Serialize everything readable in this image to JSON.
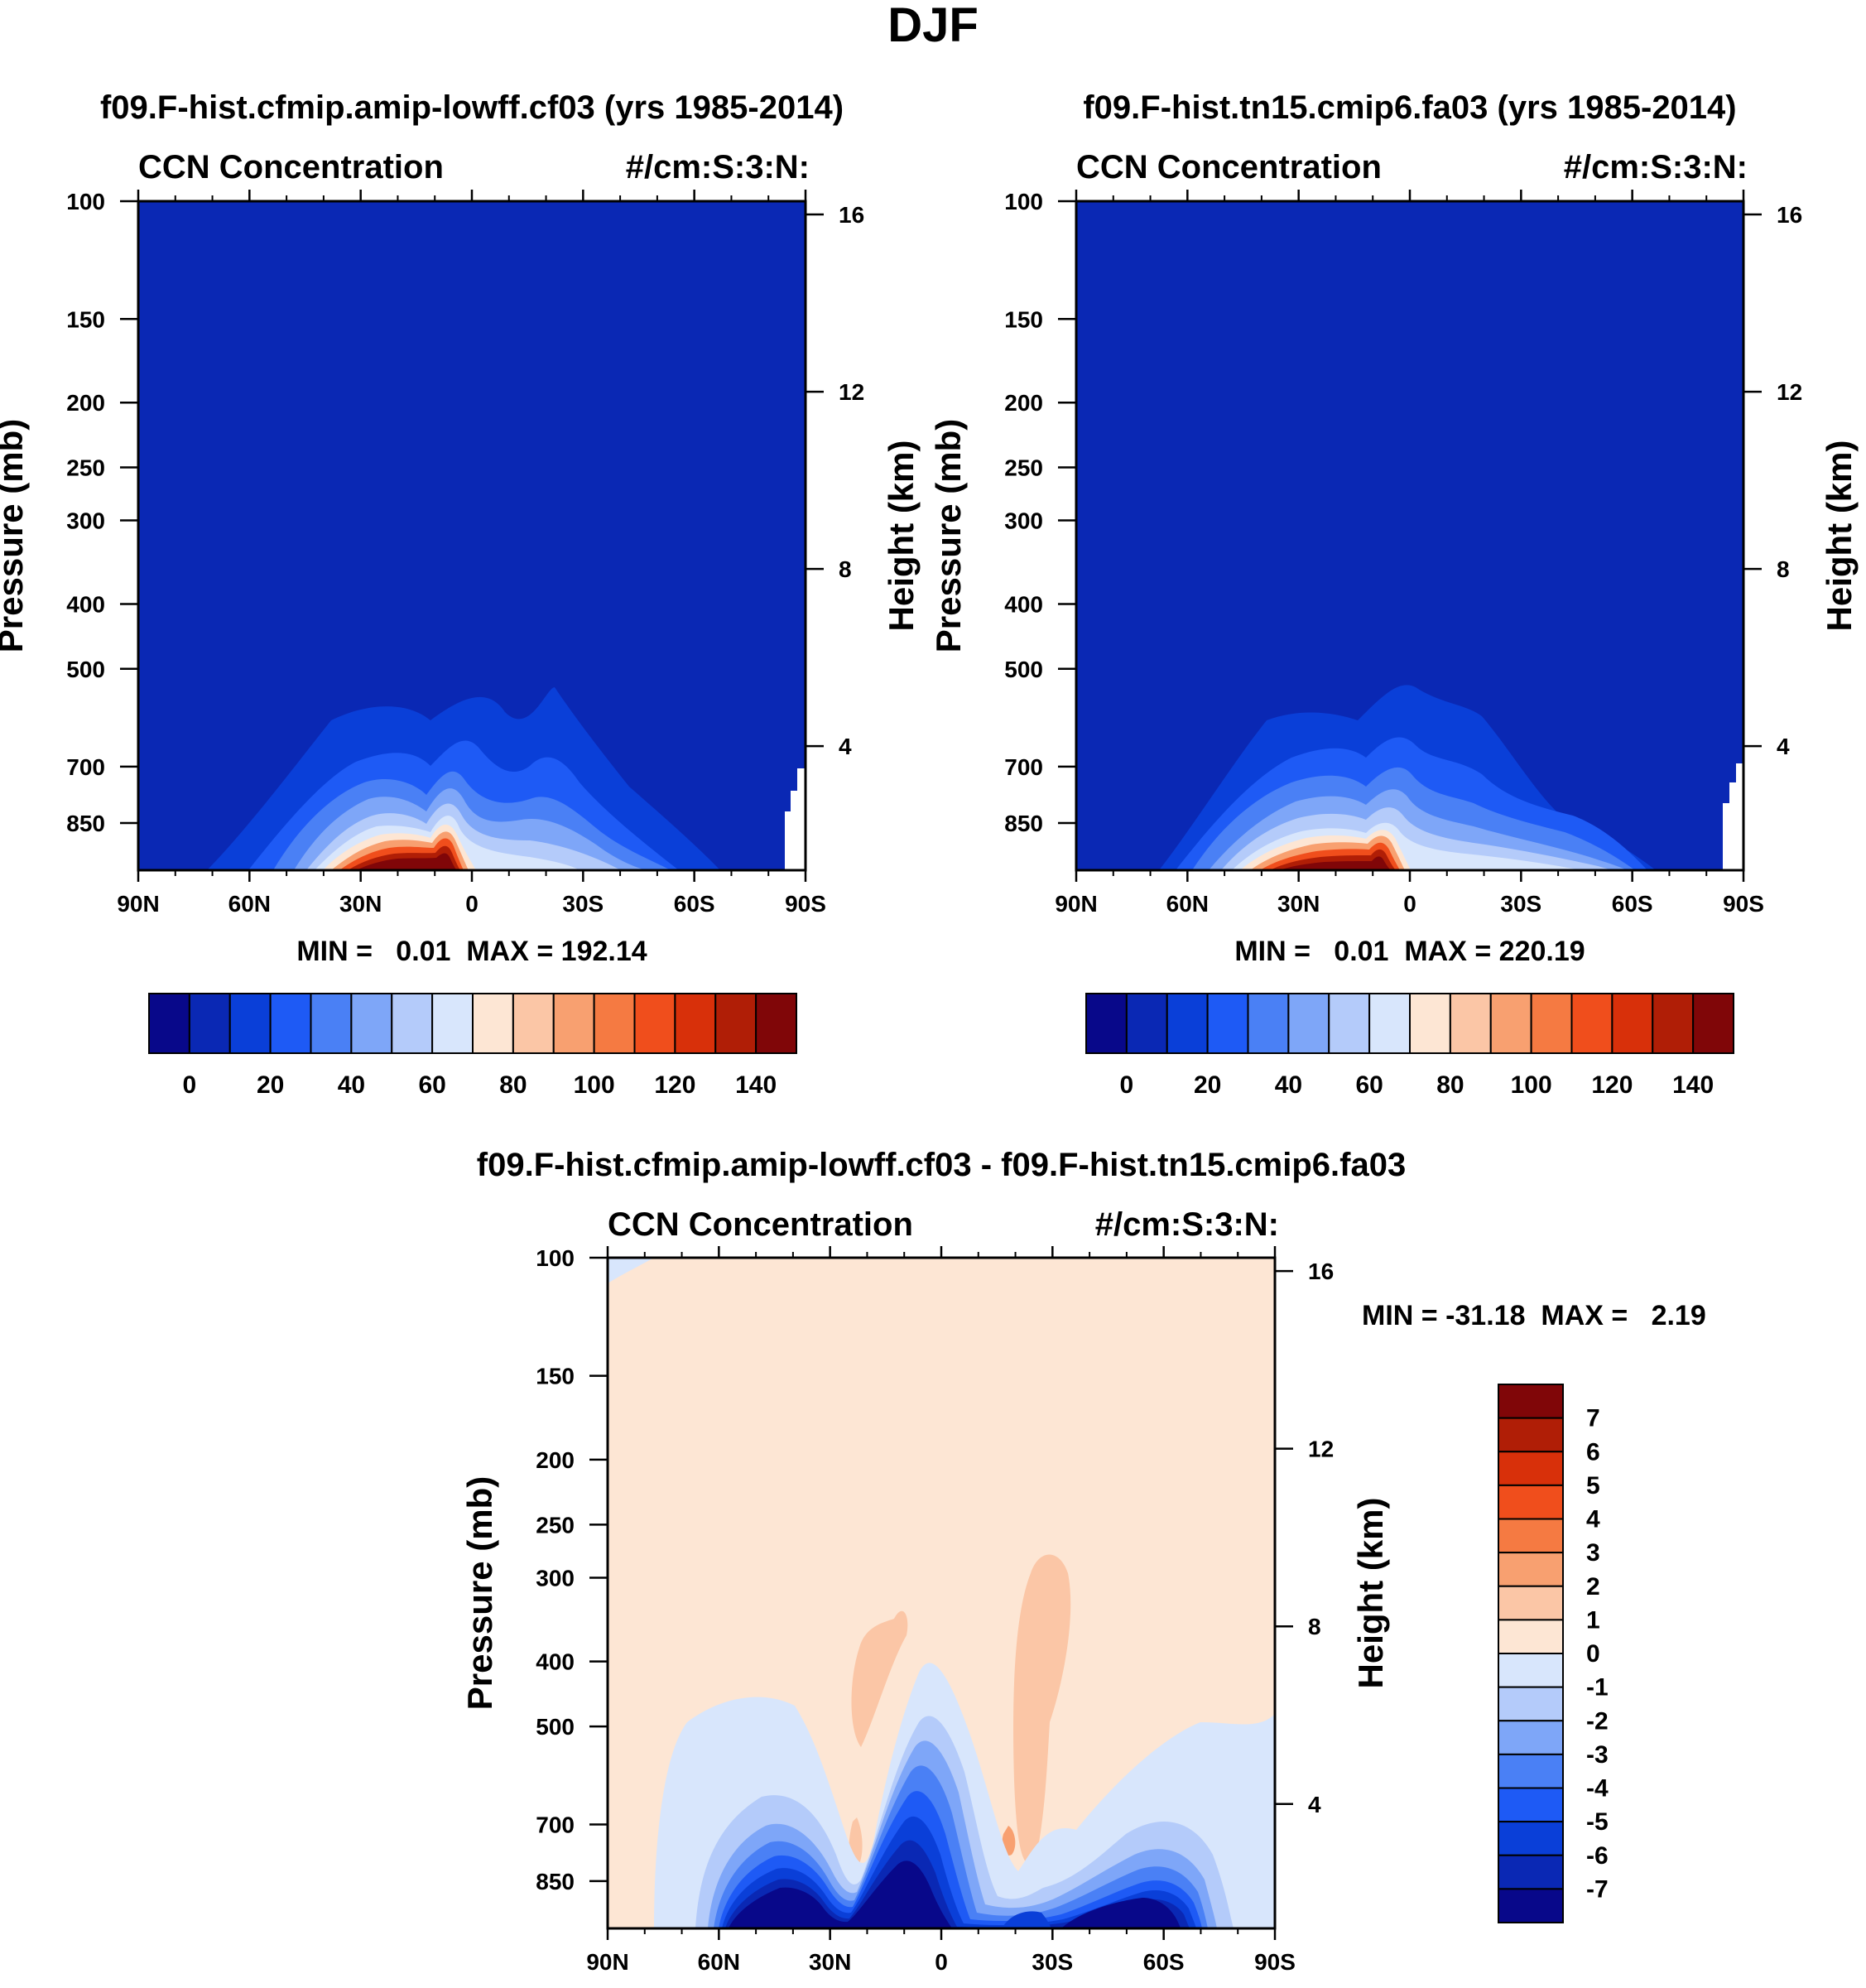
{
  "figure": {
    "title": "DJF"
  },
  "chart_data": [
    {
      "type": "contour",
      "id": "p1",
      "title": "f09.F-hist.cfmip.amip-lowff.cf03 (yrs 1985-2014)",
      "left_label": "CCN Concentration",
      "right_label": "#/cm:S:3:N:",
      "ylabel": "Pressure (mb)",
      "ylabel_right": "Height (km)",
      "x_ticks": [
        "90N",
        "60N",
        "30N",
        "0",
        "30S",
        "60S",
        "90S"
      ],
      "y_ticks": [
        "100",
        "150",
        "200",
        "250",
        "300",
        "400",
        "500",
        "700",
        "850"
      ],
      "y_right_ticks": [
        "16",
        "12",
        "8",
        "4"
      ],
      "stats": "MIN =   0.01  MAX = 192.14",
      "colorbar_labels": [
        "0",
        "20",
        "40",
        "60",
        "80",
        "100",
        "120",
        "140"
      ],
      "colorbar_colors": [
        "#08088a",
        "#0a28b4",
        "#0a3fd8",
        "#1e5af5",
        "#4a80f5",
        "#7ea6f8",
        "#b4cbfa",
        "#d8e6fc",
        "#fde6d4",
        "#fbc6a6",
        "#f8a070",
        "#f57a42",
        "#f04e1c",
        "#d8300a",
        "#b01e06",
        "#800608"
      ]
    },
    {
      "type": "contour",
      "id": "p2",
      "title": "f09.F-hist.tn15.cmip6.fa03 (yrs 1985-2014)",
      "left_label": "CCN Concentration",
      "right_label": "#/cm:S:3:N:",
      "ylabel": "Pressure (mb)",
      "ylabel_right": "Height (km)",
      "x_ticks": [
        "90N",
        "60N",
        "30N",
        "0",
        "30S",
        "60S",
        "90S"
      ],
      "y_ticks": [
        "100",
        "150",
        "200",
        "250",
        "300",
        "400",
        "500",
        "700",
        "850"
      ],
      "y_right_ticks": [
        "16",
        "12",
        "8",
        "4"
      ],
      "stats": "MIN =   0.01  MAX = 220.19",
      "colorbar_labels": [
        "0",
        "20",
        "40",
        "60",
        "80",
        "100",
        "120",
        "140"
      ],
      "colorbar_colors": [
        "#08088a",
        "#0a28b4",
        "#0a3fd8",
        "#1e5af5",
        "#4a80f5",
        "#7ea6f8",
        "#b4cbfa",
        "#d8e6fc",
        "#fde6d4",
        "#fbc6a6",
        "#f8a070",
        "#f57a42",
        "#f04e1c",
        "#d8300a",
        "#b01e06",
        "#800608"
      ]
    },
    {
      "type": "contour",
      "id": "p3",
      "title": "f09.F-hist.cfmip.amip-lowff.cf03 - f09.F-hist.tn15.cmip6.fa03",
      "left_label": "CCN Concentration",
      "right_label": "#/cm:S:3:N:",
      "ylabel": "Pressure (mb)",
      "ylabel_right": "Height (km)",
      "x_ticks": [
        "90N",
        "60N",
        "30N",
        "0",
        "30S",
        "60S",
        "90S"
      ],
      "y_ticks": [
        "100",
        "150",
        "200",
        "250",
        "300",
        "400",
        "500",
        "700",
        "850"
      ],
      "y_right_ticks": [
        "16",
        "12",
        "8",
        "4"
      ],
      "stats": "MIN = -31.18  MAX =   2.19",
      "colorbar_labels": [
        "7",
        "6",
        "5",
        "4",
        "3",
        "2",
        "1",
        "0",
        "-1",
        "-2",
        "-3",
        "-4",
        "-5",
        "-6",
        "-7"
      ],
      "colorbar_colors": [
        "#800608",
        "#b01e06",
        "#d8300a",
        "#f04e1c",
        "#f57a42",
        "#f8a070",
        "#fbc6a6",
        "#fde6d4",
        "#d8e6fc",
        "#b4cbfa",
        "#7ea6f8",
        "#4a80f5",
        "#1e5af5",
        "#0a3fd8",
        "#0a28b4",
        "#08088a"
      ]
    }
  ]
}
